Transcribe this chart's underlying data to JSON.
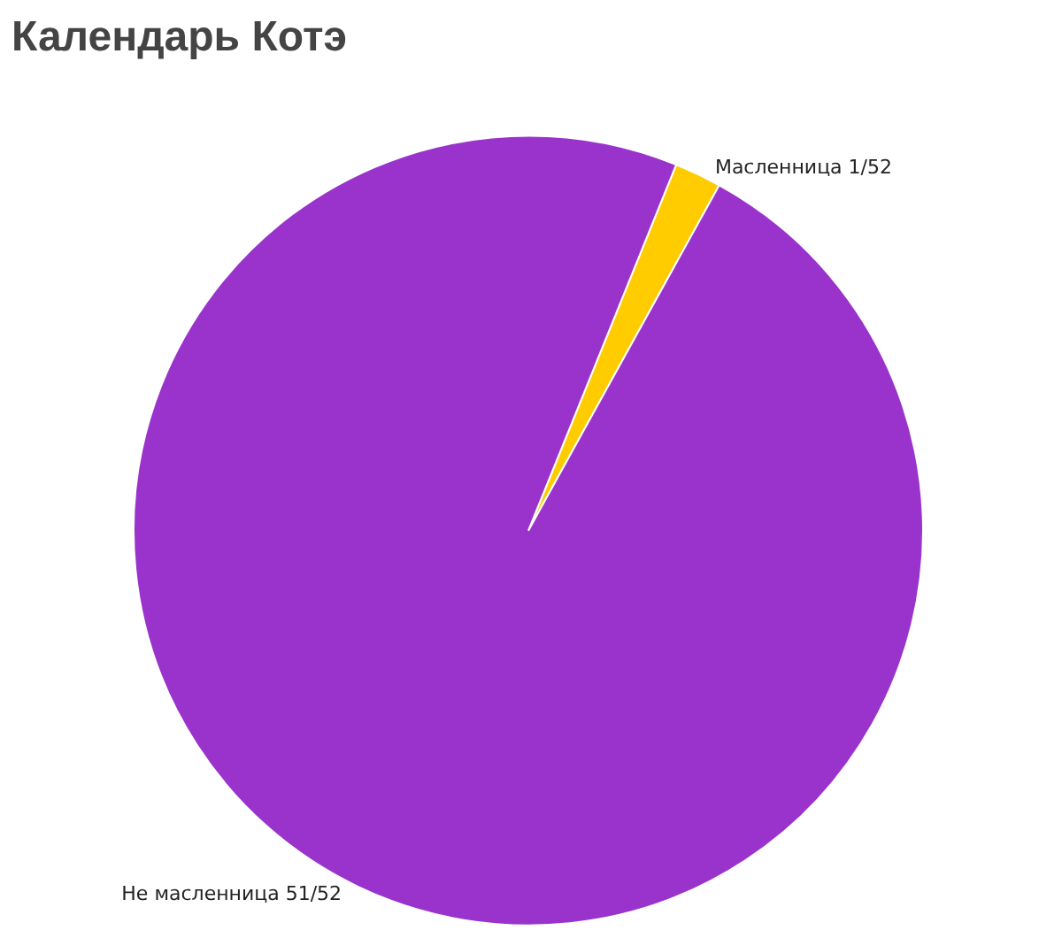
{
  "chart_data": {
    "type": "pie",
    "title": "Календарь Котэ",
    "categories": [
      "Масленница",
      "Не масленница"
    ],
    "values": [
      1,
      51
    ],
    "value_labels": [
      "1/52",
      "51/52"
    ],
    "colors": [
      "#ffcc00",
      "#9933cc"
    ]
  }
}
